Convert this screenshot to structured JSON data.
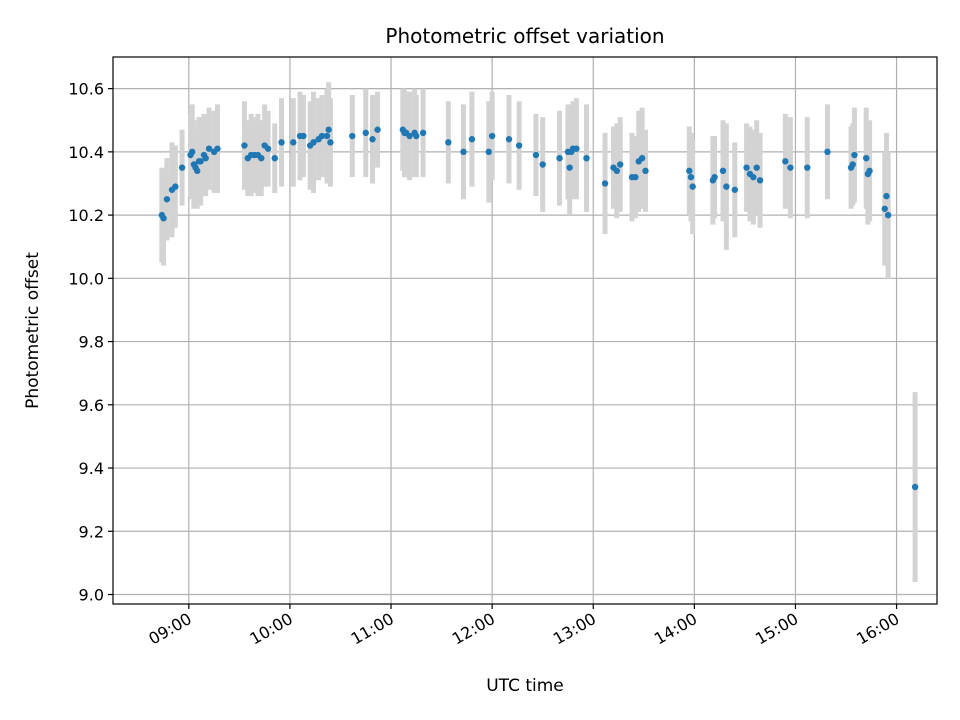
{
  "chart_data": {
    "type": "scatter",
    "title": "Photometric offset variation",
    "xlabel": "UTC time",
    "ylabel": "Photometric offset",
    "xlim": [
      "08:15",
      "16:24"
    ],
    "ylim": [
      8.97,
      10.7
    ],
    "x_ticks": [
      "09:00",
      "10:00",
      "11:00",
      "12:00",
      "13:00",
      "14:00",
      "15:00",
      "16:00"
    ],
    "y_ticks": [
      "9.0",
      "9.2",
      "9.4",
      "9.6",
      "9.8",
      "10.0",
      "10.2",
      "10.4",
      "10.6"
    ],
    "grid": true,
    "colors": {
      "points": "#1f77b4",
      "errorbars": "#d3d3d3",
      "grid": "#b0b0b0"
    },
    "series": [
      {
        "points": [
          {
            "t": "08:44",
            "y": 10.2,
            "e": 0.15
          },
          {
            "t": "08:45",
            "y": 10.19,
            "e": 0.15
          },
          {
            "t": "08:47",
            "y": 10.25,
            "e": 0.13
          },
          {
            "t": "08:50",
            "y": 10.28,
            "e": 0.15
          },
          {
            "t": "08:52",
            "y": 10.29,
            "e": 0.13
          },
          {
            "t": "08:56",
            "y": 10.35,
            "e": 0.12
          },
          {
            "t": "09:01",
            "y": 10.39,
            "e": 0.13
          },
          {
            "t": "09:02",
            "y": 10.4,
            "e": 0.15
          },
          {
            "t": "09:03",
            "y": 10.36,
            "e": 0.14
          },
          {
            "t": "09:04",
            "y": 10.35,
            "e": 0.12
          },
          {
            "t": "09:05",
            "y": 10.34,
            "e": 0.12
          },
          {
            "t": "09:06",
            "y": 10.37,
            "e": 0.14
          },
          {
            "t": "09:07",
            "y": 10.37,
            "e": 0.14
          },
          {
            "t": "09:09",
            "y": 10.39,
            "e": 0.13
          },
          {
            "t": "09:10",
            "y": 10.38,
            "e": 0.12
          },
          {
            "t": "09:12",
            "y": 10.41,
            "e": 0.13
          },
          {
            "t": "09:15",
            "y": 10.4,
            "e": 0.13
          },
          {
            "t": "09:17",
            "y": 10.41,
            "e": 0.14
          },
          {
            "t": "09:33",
            "y": 10.42,
            "e": 0.14
          },
          {
            "t": "09:35",
            "y": 10.38,
            "e": 0.12
          },
          {
            "t": "09:37",
            "y": 10.39,
            "e": 0.13
          },
          {
            "t": "09:39",
            "y": 10.39,
            "e": 0.12
          },
          {
            "t": "09:41",
            "y": 10.39,
            "e": 0.13
          },
          {
            "t": "09:43",
            "y": 10.38,
            "e": 0.12
          },
          {
            "t": "09:45",
            "y": 10.42,
            "e": 0.13
          },
          {
            "t": "09:47",
            "y": 10.41,
            "e": 0.12
          },
          {
            "t": "09:51",
            "y": 10.38,
            "e": 0.11
          },
          {
            "t": "09:55",
            "y": 10.43,
            "e": 0.14
          },
          {
            "t": "10:02",
            "y": 10.43,
            "e": 0.14
          },
          {
            "t": "10:06",
            "y": 10.45,
            "e": 0.14
          },
          {
            "t": "10:08",
            "y": 10.45,
            "e": 0.13
          },
          {
            "t": "10:12",
            "y": 10.42,
            "e": 0.14
          },
          {
            "t": "10:14",
            "y": 10.43,
            "e": 0.16
          },
          {
            "t": "10:17",
            "y": 10.44,
            "e": 0.13
          },
          {
            "t": "10:19",
            "y": 10.45,
            "e": 0.13
          },
          {
            "t": "10:22",
            "y": 10.45,
            "e": 0.15
          },
          {
            "t": "10:23",
            "y": 10.47,
            "e": 0.15
          },
          {
            "t": "10:24",
            "y": 10.43,
            "e": 0.14
          },
          {
            "t": "10:37",
            "y": 10.45,
            "e": 0.13
          },
          {
            "t": "10:45",
            "y": 10.46,
            "e": 0.14
          },
          {
            "t": "10:49",
            "y": 10.44,
            "e": 0.14
          },
          {
            "t": "10:52",
            "y": 10.47,
            "e": 0.12
          },
          {
            "t": "11:07",
            "y": 10.47,
            "e": 0.13
          },
          {
            "t": "11:08",
            "y": 10.46,
            "e": 0.14
          },
          {
            "t": "11:09",
            "y": 10.46,
            "e": 0.13
          },
          {
            "t": "11:11",
            "y": 10.45,
            "e": 0.14
          },
          {
            "t": "11:14",
            "y": 10.46,
            "e": 0.14
          },
          {
            "t": "11:15",
            "y": 10.45,
            "e": 0.13
          },
          {
            "t": "11:19",
            "y": 10.46,
            "e": 0.14
          },
          {
            "t": "11:34",
            "y": 10.43,
            "e": 0.13
          },
          {
            "t": "11:43",
            "y": 10.4,
            "e": 0.15
          },
          {
            "t": "11:48",
            "y": 10.44,
            "e": 0.15
          },
          {
            "t": "11:58",
            "y": 10.4,
            "e": 0.16
          },
          {
            "t": "12:00",
            "y": 10.45,
            "e": 0.14
          },
          {
            "t": "12:10",
            "y": 10.44,
            "e": 0.14
          },
          {
            "t": "12:16",
            "y": 10.42,
            "e": 0.14
          },
          {
            "t": "12:26",
            "y": 10.39,
            "e": 0.13
          },
          {
            "t": "12:30",
            "y": 10.36,
            "e": 0.15
          },
          {
            "t": "12:40",
            "y": 10.38,
            "e": 0.15
          },
          {
            "t": "12:45",
            "y": 10.4,
            "e": 0.15
          },
          {
            "t": "12:46",
            "y": 10.35,
            "e": 0.15
          },
          {
            "t": "12:47",
            "y": 10.4,
            "e": 0.15
          },
          {
            "t": "12:48",
            "y": 10.41,
            "e": 0.15
          },
          {
            "t": "12:50",
            "y": 10.41,
            "e": 0.16
          },
          {
            "t": "12:56",
            "y": 10.38,
            "e": 0.17
          },
          {
            "t": "13:07",
            "y": 10.3,
            "e": 0.16
          },
          {
            "t": "13:12",
            "y": 10.35,
            "e": 0.13
          },
          {
            "t": "13:14",
            "y": 10.34,
            "e": 0.15
          },
          {
            "t": "13:16",
            "y": 10.36,
            "e": 0.15
          },
          {
            "t": "13:23",
            "y": 10.32,
            "e": 0.14
          },
          {
            "t": "13:25",
            "y": 10.32,
            "e": 0.13
          },
          {
            "t": "13:27",
            "y": 10.37,
            "e": 0.16
          },
          {
            "t": "13:29",
            "y": 10.38,
            "e": 0.16
          },
          {
            "t": "13:31",
            "y": 10.34,
            "e": 0.13
          },
          {
            "t": "13:57",
            "y": 10.34,
            "e": 0.14
          },
          {
            "t": "13:58",
            "y": 10.32,
            "e": 0.14
          },
          {
            "t": "13:59",
            "y": 10.29,
            "e": 0.15
          },
          {
            "t": "14:11",
            "y": 10.31,
            "e": 0.14
          },
          {
            "t": "14:12",
            "y": 10.32,
            "e": 0.13
          },
          {
            "t": "14:17",
            "y": 10.34,
            "e": 0.16
          },
          {
            "t": "14:19",
            "y": 10.29,
            "e": 0.2
          },
          {
            "t": "14:24",
            "y": 10.28,
            "e": 0.15
          },
          {
            "t": "14:31",
            "y": 10.35,
            "e": 0.14
          },
          {
            "t": "14:33",
            "y": 10.33,
            "e": 0.15
          },
          {
            "t": "14:35",
            "y": 10.32,
            "e": 0.15
          },
          {
            "t": "14:37",
            "y": 10.35,
            "e": 0.15
          },
          {
            "t": "14:39",
            "y": 10.31,
            "e": 0.15
          },
          {
            "t": "14:54",
            "y": 10.37,
            "e": 0.15
          },
          {
            "t": "14:57",
            "y": 10.35,
            "e": 0.16
          },
          {
            "t": "15:07",
            "y": 10.35,
            "e": 0.16
          },
          {
            "t": "15:19",
            "y": 10.4,
            "e": 0.15
          },
          {
            "t": "15:33",
            "y": 10.35,
            "e": 0.13
          },
          {
            "t": "15:34",
            "y": 10.36,
            "e": 0.13
          },
          {
            "t": "15:35",
            "y": 10.39,
            "e": 0.15
          },
          {
            "t": "15:42",
            "y": 10.38,
            "e": 0.16
          },
          {
            "t": "15:43",
            "y": 10.33,
            "e": 0.16
          },
          {
            "t": "15:44",
            "y": 10.34,
            "e": 0.16
          },
          {
            "t": "15:53",
            "y": 10.22,
            "e": 0.18
          },
          {
            "t": "15:54",
            "y": 10.26,
            "e": 0.2
          },
          {
            "t": "15:55",
            "y": 10.2,
            "e": 0.2
          },
          {
            "t": "16:11",
            "y": 9.34,
            "e": 0.3
          }
        ]
      }
    ]
  }
}
